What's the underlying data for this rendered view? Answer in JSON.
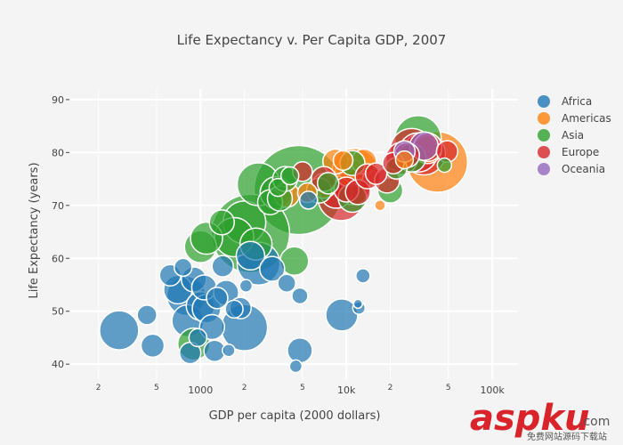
{
  "chart_data": {
    "type": "scatter",
    "subtype": "bubble",
    "title": "Life Expectancy v. Per Capita GDP, 2007",
    "xlabel": "GDP per capita (2000 dollars)",
    "ylabel": "Life Expectancy (years)",
    "xscale": "log",
    "xlim": [
      130,
      150000
    ],
    "ylim": [
      37,
      92
    ],
    "x_major_ticks": [
      {
        "value": 1000,
        "label": "1000"
      },
      {
        "value": 10000,
        "label": "10k"
      },
      {
        "value": 100000,
        "label": "100k"
      }
    ],
    "x_minor_ticks": [
      {
        "value": 200,
        "label": "2"
      },
      {
        "value": 500,
        "label": "5"
      },
      {
        "value": 2000,
        "label": "2"
      },
      {
        "value": 5000,
        "label": "5"
      },
      {
        "value": 20000,
        "label": "2"
      },
      {
        "value": 50000,
        "label": "5"
      }
    ],
    "y_ticks": [
      40,
      50,
      60,
      70,
      80,
      90
    ],
    "grid": true,
    "legend_position": "top-right",
    "series": [
      {
        "name": "Africa",
        "color": "#1f77b4",
        "points": [
          {
            "x": 277,
            "y": 46.4,
            "size": 22
          },
          {
            "x": 430,
            "y": 49.3,
            "size": 11
          },
          {
            "x": 470,
            "y": 43.5,
            "size": 13
          },
          {
            "x": 620,
            "y": 56.8,
            "size": 12
          },
          {
            "x": 700,
            "y": 54.1,
            "size": 16
          },
          {
            "x": 760,
            "y": 58.3,
            "size": 10
          },
          {
            "x": 800,
            "y": 52.9,
            "size": 22
          },
          {
            "x": 820,
            "y": 48.2,
            "size": 18
          },
          {
            "x": 850,
            "y": 42.1,
            "size": 12
          },
          {
            "x": 900,
            "y": 56.0,
            "size": 14
          },
          {
            "x": 960,
            "y": 45.0,
            "size": 10
          },
          {
            "x": 1000,
            "y": 51.0,
            "size": 16
          },
          {
            "x": 1060,
            "y": 54.5,
            "size": 14
          },
          {
            "x": 1100,
            "y": 50.5,
            "size": 16
          },
          {
            "x": 1200,
            "y": 47.0,
            "size": 14
          },
          {
            "x": 1250,
            "y": 42.5,
            "size": 12
          },
          {
            "x": 1300,
            "y": 52.5,
            "size": 12
          },
          {
            "x": 1420,
            "y": 58.5,
            "size": 12
          },
          {
            "x": 1500,
            "y": 53.5,
            "size": 14
          },
          {
            "x": 1560,
            "y": 42.6,
            "size": 7
          },
          {
            "x": 1700,
            "y": 50.4,
            "size": 10
          },
          {
            "x": 1880,
            "y": 50.6,
            "size": 12
          },
          {
            "x": 2000,
            "y": 46.9,
            "size": 26
          },
          {
            "x": 2050,
            "y": 54.8,
            "size": 7
          },
          {
            "x": 2500,
            "y": 59.0,
            "size": 24
          },
          {
            "x": 2200,
            "y": 60.5,
            "size": 16
          },
          {
            "x": 3100,
            "y": 58.0,
            "size": 14
          },
          {
            "x": 3900,
            "y": 55.3,
            "size": 10
          },
          {
            "x": 4500,
            "y": 39.6,
            "size": 7
          },
          {
            "x": 4800,
            "y": 52.9,
            "size": 9
          },
          {
            "x": 4800,
            "y": 42.6,
            "size": 14
          },
          {
            "x": 5500,
            "y": 71.0,
            "size": 10
          },
          {
            "x": 9300,
            "y": 49.3,
            "size": 18
          },
          {
            "x": 12000,
            "y": 51.4,
            "size": 5
          },
          {
            "x": 12200,
            "y": 50.6,
            "size": 7
          },
          {
            "x": 13000,
            "y": 56.7,
            "size": 8
          }
        ]
      },
      {
        "name": "Americas",
        "color": "#ff7f0e",
        "points": [
          {
            "x": 3900,
            "y": 72.0,
            "size": 14
          },
          {
            "x": 5400,
            "y": 72.4,
            "size": 11
          },
          {
            "x": 7000,
            "y": 73.7,
            "size": 14
          },
          {
            "x": 8400,
            "y": 78.3,
            "size": 14
          },
          {
            "x": 9500,
            "y": 78.5,
            "size": 11
          },
          {
            "x": 10500,
            "y": 76.2,
            "size": 16
          },
          {
            "x": 11500,
            "y": 76.4,
            "size": 26
          },
          {
            "x": 13200,
            "y": 78.3,
            "size": 14
          },
          {
            "x": 17000,
            "y": 70.0,
            "size": 6
          },
          {
            "x": 25000,
            "y": 78.6,
            "size": 10
          },
          {
            "x": 42000,
            "y": 78.2,
            "size": 34
          },
          {
            "x": 36000,
            "y": 80.6,
            "size": 16
          }
        ]
      },
      {
        "name": "Asia",
        "color": "#2ca02c",
        "points": [
          {
            "x": 900,
            "y": 43.8,
            "size": 18
          },
          {
            "x": 1000,
            "y": 62.2,
            "size": 18
          },
          {
            "x": 1100,
            "y": 63.8,
            "size": 18
          },
          {
            "x": 1400,
            "y": 66.8,
            "size": 14
          },
          {
            "x": 1700,
            "y": 64.0,
            "size": 22
          },
          {
            "x": 2000,
            "y": 66.8,
            "size": 24
          },
          {
            "x": 2200,
            "y": 64.7,
            "size": 44
          },
          {
            "x": 2400,
            "y": 62.7,
            "size": 18
          },
          {
            "x": 2500,
            "y": 74.0,
            "size": 24
          },
          {
            "x": 3000,
            "y": 70.6,
            "size": 14
          },
          {
            "x": 3300,
            "y": 72.4,
            "size": 18
          },
          {
            "x": 3400,
            "y": 73.4,
            "size": 10
          },
          {
            "x": 3500,
            "y": 71.3,
            "size": 14
          },
          {
            "x": 4700,
            "y": 72.9,
            "size": 50
          },
          {
            "x": 3800,
            "y": 75.0,
            "size": 14
          },
          {
            "x": 4100,
            "y": 75.6,
            "size": 10
          },
          {
            "x": 4400,
            "y": 59.5,
            "size": 16
          },
          {
            "x": 6500,
            "y": 72.8,
            "size": 14
          },
          {
            "x": 7500,
            "y": 74.2,
            "size": 12
          },
          {
            "x": 11000,
            "y": 71.4,
            "size": 16
          },
          {
            "x": 11000,
            "y": 78.0,
            "size": 14
          },
          {
            "x": 20000,
            "y": 72.8,
            "size": 14
          },
          {
            "x": 22000,
            "y": 77.0,
            "size": 12
          },
          {
            "x": 28000,
            "y": 79.0,
            "size": 16
          },
          {
            "x": 31000,
            "y": 82.6,
            "size": 26
          },
          {
            "x": 47000,
            "y": 77.6,
            "size": 8
          }
        ]
      },
      {
        "name": "Europe",
        "color": "#d62728",
        "points": [
          {
            "x": 5000,
            "y": 76.4,
            "size": 11
          },
          {
            "x": 7000,
            "y": 75.0,
            "size": 14
          },
          {
            "x": 8500,
            "y": 72.5,
            "size": 18
          },
          {
            "x": 9200,
            "y": 71.5,
            "size": 26
          },
          {
            "x": 10000,
            "y": 73.0,
            "size": 14
          },
          {
            "x": 11000,
            "y": 73.5,
            "size": 20
          },
          {
            "x": 12000,
            "y": 72.5,
            "size": 14
          },
          {
            "x": 14000,
            "y": 75.5,
            "size": 14
          },
          {
            "x": 16000,
            "y": 76.0,
            "size": 12
          },
          {
            "x": 19000,
            "y": 74.7,
            "size": 14
          },
          {
            "x": 21000,
            "y": 78.0,
            "size": 12
          },
          {
            "x": 24000,
            "y": 78.9,
            "size": 18
          },
          {
            "x": 26000,
            "y": 79.5,
            "size": 14
          },
          {
            "x": 28000,
            "y": 80.5,
            "size": 24
          },
          {
            "x": 31000,
            "y": 80.0,
            "size": 22
          },
          {
            "x": 34000,
            "y": 79.8,
            "size": 24
          },
          {
            "x": 36000,
            "y": 81.0,
            "size": 16
          },
          {
            "x": 49000,
            "y": 80.2,
            "size": 12
          }
        ]
      },
      {
        "name": "Oceania",
        "color": "#9467bd",
        "points": [
          {
            "x": 25000,
            "y": 80.2,
            "size": 12
          },
          {
            "x": 34000,
            "y": 81.2,
            "size": 16
          }
        ]
      }
    ]
  },
  "watermark": {
    "text_main": "aspku",
    "text_suffix": ".com",
    "text_sub": "免费网站源码下载站"
  }
}
